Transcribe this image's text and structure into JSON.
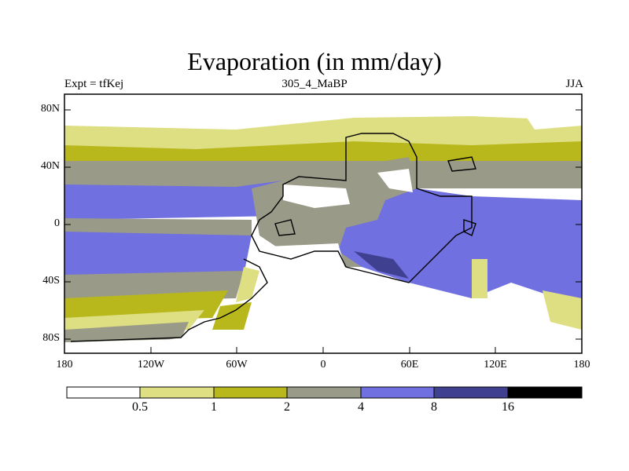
{
  "title": "Evaporation (in mm/day)",
  "subtitle_left": "Expt = tfKej",
  "subtitle_center": "305_4_MaBP",
  "subtitle_right": "JJA",
  "lat_ticks": [
    "80N",
    "40N",
    "0",
    "40S",
    "80S"
  ],
  "lon_ticks": [
    "180",
    "120W",
    "60W",
    "0",
    "60E",
    "120E",
    "180"
  ],
  "legend": {
    "labels": [
      "0.5",
      "1",
      "2",
      "4",
      "8",
      "16"
    ],
    "colors": [
      "#ffffff",
      "#dede82",
      "#b8b81c",
      "#9a9a88",
      "#7070e0",
      "#404090",
      "#000000"
    ]
  },
  "colors": {
    "ocean_high": "#7070e0",
    "ocean_mid": "#9a9a88",
    "land_dry": "#ffffff",
    "very_high": "#404090"
  }
}
